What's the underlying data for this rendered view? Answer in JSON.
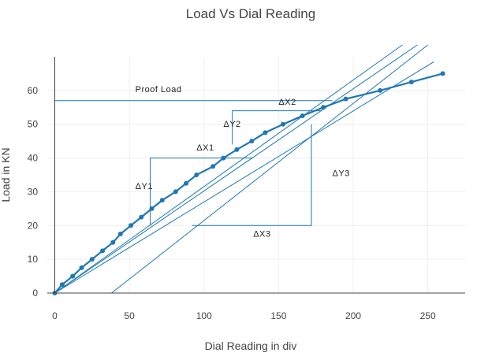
{
  "chart_data": {
    "type": "line",
    "title": "Load Vs Dial Reading",
    "xlabel": "Dial Reading in div",
    "ylabel": "Load in KN",
    "xlim": [
      -5,
      275
    ],
    "ylim": [
      0,
      70
    ],
    "xticks": [
      0,
      50,
      100,
      150,
      200,
      250
    ],
    "yticks": [
      0,
      10,
      20,
      30,
      40,
      50,
      60
    ],
    "grid": true,
    "legend": "none",
    "series": [
      {
        "color": "#1f77b4",
        "x": [
          0,
          5,
          12,
          18,
          25,
          32,
          39,
          44,
          51,
          58,
          65,
          72,
          81,
          88,
          95,
          106,
          113,
          122,
          132,
          141,
          153,
          166,
          180,
          195,
          218,
          239,
          260
        ],
        "y": [
          0,
          2.5,
          5,
          7.5,
          10,
          12.5,
          15,
          17.5,
          20,
          22.5,
          25,
          27.5,
          30,
          32.5,
          35,
          37.5,
          40,
          42.5,
          45,
          47.5,
          50,
          52.5,
          55,
          57.5,
          60,
          62.5,
          65
        ]
      }
    ],
    "construction_lines": [
      {
        "color": "#1f77b4",
        "x": [
          0,
          254
        ],
        "y": [
          0,
          68.5
        ]
      },
      {
        "color": "#1f77b4",
        "x": [
          0,
          233
        ],
        "y": [
          0,
          73.5
        ]
      },
      {
        "color": "#1f77b4",
        "x": [
          0,
          243
        ],
        "y": [
          0,
          73.5
        ]
      },
      {
        "color": "#1f77b4",
        "x": [
          38,
          250
        ],
        "y": [
          0,
          73.5
        ]
      },
      {
        "color": "#1f77b4",
        "x": [
          0,
          186
        ],
        "y": [
          57,
          57
        ]
      },
      {
        "color": "#1f77b4",
        "x": [
          64,
          64,
          133
        ],
        "y": [
          20,
          40,
          40
        ]
      },
      {
        "color": "#1f77b4",
        "x": [
          119,
          119,
          179
        ],
        "y": [
          44,
          54,
          54
        ]
      },
      {
        "color": "#1f77b4",
        "x": [
          92,
          172,
          172
        ],
        "y": [
          20,
          20,
          50
        ]
      }
    ],
    "annotations": [
      {
        "text": "Proof Load",
        "x": 54,
        "y": 59.5
      },
      {
        "text": "ΔX1",
        "x": 95,
        "y": 42.2
      },
      {
        "text": "ΔY1",
        "x": 54,
        "y": 30.8
      },
      {
        "text": "ΔX2",
        "x": 150,
        "y": 55.8
      },
      {
        "text": "ΔY2",
        "x": 113,
        "y": 49.2
      },
      {
        "text": "ΔY3",
        "x": 186,
        "y": 34.6
      },
      {
        "text": "ΔX3",
        "x": 133,
        "y": 16.7
      }
    ]
  }
}
